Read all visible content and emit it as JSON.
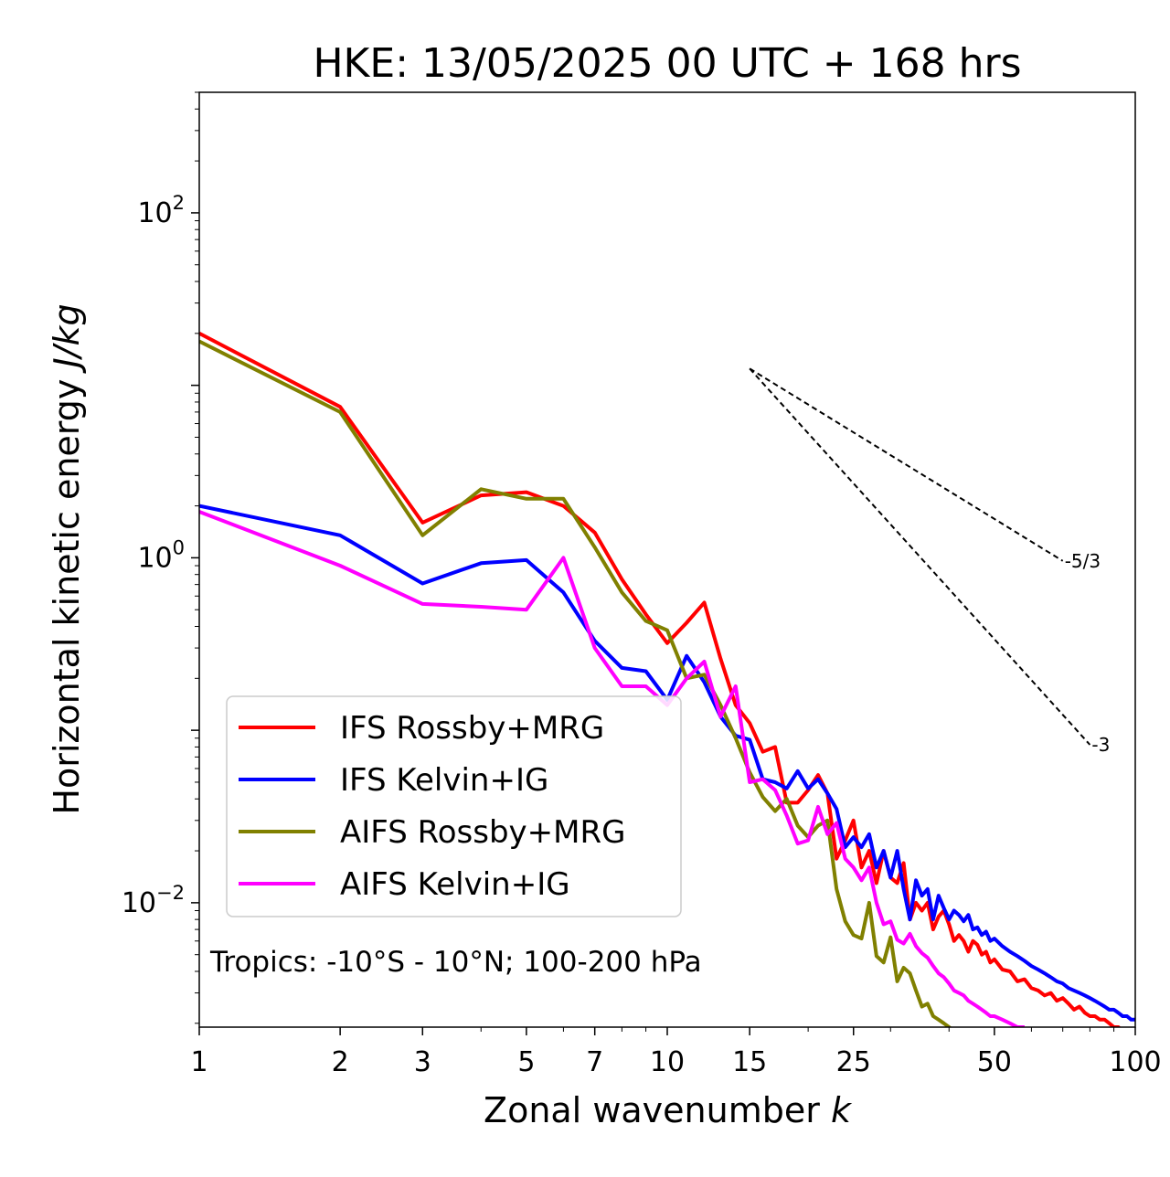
{
  "chart_data": {
    "type": "line",
    "title": "HKE: 13/05/2025 00 UTC + 168 hrs",
    "xlabel": "Zonal wavenumber",
    "xlabel_var": "k",
    "ylabel": "Horizontal kinetic energy",
    "ylabel_unit": "J/kg",
    "x_scale": "log",
    "y_scale": "log",
    "xlim": [
      1,
      100
    ],
    "ylim": [
      0.0019,
      500
    ],
    "x_ticks": [
      1,
      2,
      3,
      5,
      7,
      10,
      15,
      25,
      50,
      100
    ],
    "y_ticks": [
      {
        "value": 100,
        "base": "10",
        "exp": "2"
      },
      {
        "value": 1,
        "base": "10",
        "exp": "0"
      },
      {
        "value": 0.01,
        "base": "10",
        "exp": "−2"
      }
    ],
    "grid": false,
    "legend_position": "lower-left",
    "annotation": "Tropics: -10°S - 10°N; 100-200 hPa",
    "reference_lines": [
      {
        "label": "-5/3",
        "slope": -1.6667,
        "x_start": 15,
        "y_start": 12.5,
        "x_end": 70
      },
      {
        "label": "-3",
        "slope": -3,
        "x_start": 15,
        "y_start": 12.5,
        "x_end": 80
      }
    ],
    "series": [
      {
        "name": "IFS Rossby+MRG",
        "color": "#ff0000",
        "x": [
          1,
          2,
          3,
          4,
          5,
          6,
          7,
          8,
          9,
          10,
          11,
          12,
          13,
          14,
          15,
          16,
          17,
          18,
          19,
          20,
          21,
          22,
          23,
          24,
          25,
          26,
          27,
          28,
          29,
          30,
          31,
          32,
          33,
          34,
          35,
          36,
          37,
          38,
          39,
          40,
          41,
          42,
          43,
          44,
          45,
          46,
          47,
          48,
          49,
          50,
          52,
          54,
          56,
          58,
          60,
          62,
          64,
          66,
          68,
          70,
          72,
          74,
          76,
          78,
          80,
          82,
          84,
          86,
          88,
          90,
          92,
          94,
          96,
          98,
          100
        ],
        "y": [
          20,
          7.5,
          1.6,
          2.3,
          2.4,
          2.0,
          1.4,
          0.75,
          0.47,
          0.32,
          0.42,
          0.55,
          0.26,
          0.14,
          0.11,
          0.075,
          0.08,
          0.038,
          0.038,
          0.045,
          0.055,
          0.043,
          0.018,
          0.023,
          0.03,
          0.016,
          0.02,
          0.013,
          0.02,
          0.014,
          0.013,
          0.017,
          0.008,
          0.01,
          0.009,
          0.01,
          0.007,
          0.0083,
          0.009,
          0.0075,
          0.006,
          0.0065,
          0.006,
          0.0052,
          0.006,
          0.0057,
          0.005,
          0.0052,
          0.0045,
          0.0047,
          0.0041,
          0.004,
          0.0035,
          0.0036,
          0.0032,
          0.0031,
          0.0029,
          0.003,
          0.0027,
          0.0028,
          0.0026,
          0.0024,
          0.0025,
          0.0023,
          0.0022,
          0.0022,
          0.0021,
          0.0021,
          0.002,
          0.0019,
          0.0019,
          0.0018,
          0.0018,
          0.0017,
          0.0017
        ]
      },
      {
        "name": "IFS Kelvin+IG",
        "color": "#0000ff",
        "x": [
          1,
          2,
          3,
          4,
          5,
          6,
          7,
          8,
          9,
          10,
          11,
          12,
          13,
          14,
          15,
          16,
          17,
          18,
          19,
          20,
          21,
          22,
          23,
          24,
          25,
          26,
          27,
          28,
          29,
          30,
          31,
          32,
          33,
          34,
          35,
          36,
          37,
          38,
          39,
          40,
          41,
          42,
          43,
          44,
          45,
          46,
          47,
          48,
          49,
          50,
          52,
          54,
          56,
          58,
          60,
          62,
          64,
          66,
          68,
          70,
          72,
          74,
          76,
          78,
          80,
          82,
          84,
          86,
          88,
          90,
          92,
          94,
          96,
          98,
          100
        ],
        "y": [
          2.0,
          1.35,
          0.71,
          0.93,
          0.97,
          0.63,
          0.33,
          0.23,
          0.22,
          0.15,
          0.27,
          0.19,
          0.12,
          0.093,
          0.088,
          0.052,
          0.05,
          0.046,
          0.058,
          0.046,
          0.052,
          0.043,
          0.035,
          0.021,
          0.024,
          0.021,
          0.025,
          0.016,
          0.02,
          0.014,
          0.02,
          0.012,
          0.008,
          0.0135,
          0.011,
          0.012,
          0.008,
          0.011,
          0.0093,
          0.008,
          0.009,
          0.0085,
          0.0078,
          0.0085,
          0.007,
          0.0072,
          0.0065,
          0.0068,
          0.006,
          0.0062,
          0.0056,
          0.0052,
          0.0049,
          0.0046,
          0.0043,
          0.0041,
          0.0039,
          0.0037,
          0.0035,
          0.0034,
          0.0032,
          0.0031,
          0.003,
          0.0029,
          0.0028,
          0.0027,
          0.0026,
          0.0025,
          0.0024,
          0.0024,
          0.0023,
          0.0022,
          0.0022,
          0.0021,
          0.0021
        ]
      },
      {
        "name": "AIFS Rossby+MRG",
        "color": "#808000",
        "x": [
          1,
          2,
          3,
          4,
          5,
          6,
          7,
          8,
          9,
          10,
          11,
          12,
          13,
          14,
          15,
          16,
          17,
          18,
          19,
          20,
          21,
          22,
          23,
          24,
          25,
          26,
          27,
          28,
          29,
          30,
          31,
          32,
          33,
          34,
          35,
          36,
          37,
          38,
          39,
          40,
          41,
          42,
          43,
          44,
          45,
          46,
          47,
          48,
          49
        ],
        "y": [
          18,
          7.0,
          1.35,
          2.5,
          2.2,
          2.2,
          1.15,
          0.63,
          0.43,
          0.38,
          0.2,
          0.21,
          0.14,
          0.09,
          0.057,
          0.041,
          0.034,
          0.04,
          0.028,
          0.024,
          0.028,
          0.03,
          0.012,
          0.0078,
          0.0065,
          0.0062,
          0.01,
          0.0049,
          0.0045,
          0.0063,
          0.0035,
          0.0042,
          0.0039,
          0.0031,
          0.0025,
          0.0026,
          0.0022,
          0.0021,
          0.002,
          0.0019,
          0.0018,
          0.0017,
          0.0016,
          0.0016,
          0.0015,
          0.0014,
          0.0014,
          0.0013,
          0.0013
        ]
      },
      {
        "name": "AIFS Kelvin+IG",
        "color": "#ff00ff",
        "x": [
          1,
          2,
          3,
          4,
          5,
          6,
          7,
          8,
          9,
          10,
          11,
          12,
          13,
          14,
          15,
          16,
          17,
          18,
          19,
          20,
          21,
          22,
          23,
          24,
          25,
          26,
          27,
          28,
          29,
          30,
          31,
          32,
          33,
          34,
          35,
          36,
          37,
          38,
          39,
          40,
          41,
          42,
          43,
          44,
          45,
          46,
          47,
          48,
          49,
          50,
          52,
          54,
          56,
          58
        ],
        "y": [
          1.85,
          0.9,
          0.54,
          0.52,
          0.5,
          1.0,
          0.3,
          0.18,
          0.18,
          0.14,
          0.2,
          0.25,
          0.12,
          0.18,
          0.05,
          0.052,
          0.045,
          0.032,
          0.022,
          0.023,
          0.036,
          0.025,
          0.029,
          0.018,
          0.016,
          0.0135,
          0.016,
          0.01,
          0.0075,
          0.0078,
          0.0061,
          0.0058,
          0.0066,
          0.0056,
          0.0051,
          0.0048,
          0.0043,
          0.0039,
          0.0037,
          0.0034,
          0.0031,
          0.003,
          0.0029,
          0.0027,
          0.0026,
          0.0025,
          0.0024,
          0.0023,
          0.0022,
          0.0022,
          0.0021,
          0.002,
          0.0019,
          0.0019
        ]
      }
    ]
  }
}
